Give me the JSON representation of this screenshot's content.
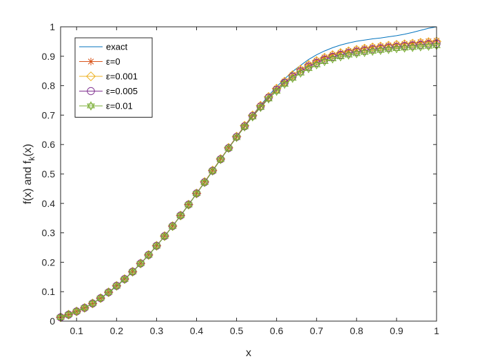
{
  "chart_data": {
    "type": "line",
    "title": "",
    "xlabel": "x",
    "ylabel": "f(x) and f_k(x)",
    "ylabel_parts": {
      "pre": "f(x) and f",
      "sub": "k",
      "post": "(x)"
    },
    "xlim": [
      0.06,
      1.0
    ],
    "ylim": [
      0,
      1
    ],
    "x_ticks": [
      0.1,
      0.2,
      0.3,
      0.4,
      0.5,
      0.6,
      0.7,
      0.8,
      0.9,
      1
    ],
    "x_tick_labels": [
      "0.1",
      "0.2",
      "0.3",
      "0.4",
      "0.5",
      "0.6",
      "0.7",
      "0.8",
      "0.9",
      "1"
    ],
    "y_ticks": [
      0,
      0.1,
      0.2,
      0.3,
      0.4,
      0.5,
      0.6,
      0.7,
      0.8,
      0.9,
      1
    ],
    "y_tick_labels": [
      "0",
      "0.1",
      "0.2",
      "0.3",
      "0.4",
      "0.5",
      "0.6",
      "0.7",
      "0.8",
      "0.9",
      "1"
    ],
    "grid": false,
    "legend_position": "top-left",
    "x": [
      0.06,
      0.08,
      0.1,
      0.12,
      0.14,
      0.16,
      0.18,
      0.2,
      0.22,
      0.24,
      0.26,
      0.28,
      0.3,
      0.32,
      0.34,
      0.36,
      0.38,
      0.4,
      0.42,
      0.44,
      0.46,
      0.48,
      0.5,
      0.52,
      0.54,
      0.56,
      0.58,
      0.6,
      0.62,
      0.64,
      0.66,
      0.68,
      0.7,
      0.72,
      0.74,
      0.76,
      0.78,
      0.8,
      0.82,
      0.84,
      0.86,
      0.88,
      0.9,
      0.92,
      0.94,
      0.96,
      0.98,
      1.0
    ],
    "series": [
      {
        "name": "exact",
        "color": "#0072BD",
        "marker": "none",
        "values": [
          0.013,
          0.022,
          0.033,
          0.045,
          0.06,
          0.077,
          0.097,
          0.118,
          0.142,
          0.167,
          0.195,
          0.224,
          0.255,
          0.288,
          0.322,
          0.358,
          0.395,
          0.433,
          0.471,
          0.51,
          0.549,
          0.588,
          0.627,
          0.664,
          0.7,
          0.734,
          0.766,
          0.796,
          0.823,
          0.848,
          0.869,
          0.889,
          0.905,
          0.918,
          0.929,
          0.938,
          0.945,
          0.951,
          0.955,
          0.959,
          0.962,
          0.966,
          0.97,
          0.975,
          0.981,
          0.988,
          0.995,
          1.0
        ]
      },
      {
        "name": "ε=0",
        "color": "#D95319",
        "marker": "asterisk",
        "values": [
          0.013,
          0.022,
          0.033,
          0.045,
          0.06,
          0.078,
          0.098,
          0.12,
          0.143,
          0.168,
          0.196,
          0.225,
          0.256,
          0.289,
          0.323,
          0.359,
          0.396,
          0.434,
          0.473,
          0.512,
          0.551,
          0.589,
          0.627,
          0.664,
          0.699,
          0.732,
          0.762,
          0.79,
          0.814,
          0.836,
          0.855,
          0.871,
          0.885,
          0.896,
          0.905,
          0.912,
          0.918,
          0.923,
          0.927,
          0.931,
          0.934,
          0.937,
          0.94,
          0.942,
          0.945,
          0.948,
          0.951,
          0.953
        ]
      },
      {
        "name": "ε=0.001",
        "color": "#EDB120",
        "marker": "diamond",
        "values": [
          0.013,
          0.022,
          0.033,
          0.045,
          0.06,
          0.078,
          0.098,
          0.12,
          0.143,
          0.168,
          0.196,
          0.225,
          0.256,
          0.289,
          0.323,
          0.359,
          0.396,
          0.434,
          0.473,
          0.512,
          0.551,
          0.589,
          0.627,
          0.664,
          0.699,
          0.732,
          0.762,
          0.79,
          0.814,
          0.836,
          0.855,
          0.871,
          0.884,
          0.895,
          0.904,
          0.911,
          0.917,
          0.922,
          0.926,
          0.93,
          0.933,
          0.936,
          0.939,
          0.941,
          0.943,
          0.946,
          0.948,
          0.95
        ]
      },
      {
        "name": "ε=0.005",
        "color": "#7E2F8E",
        "marker": "circle",
        "values": [
          0.013,
          0.022,
          0.033,
          0.045,
          0.06,
          0.078,
          0.098,
          0.12,
          0.143,
          0.168,
          0.196,
          0.225,
          0.256,
          0.289,
          0.323,
          0.359,
          0.396,
          0.434,
          0.472,
          0.511,
          0.55,
          0.588,
          0.626,
          0.662,
          0.697,
          0.729,
          0.759,
          0.786,
          0.81,
          0.831,
          0.849,
          0.865,
          0.878,
          0.889,
          0.898,
          0.905,
          0.911,
          0.916,
          0.92,
          0.924,
          0.927,
          0.93,
          0.932,
          0.935,
          0.937,
          0.939,
          0.941,
          0.943
        ]
      },
      {
        "name": "ε=0.01",
        "color": "#77AC30",
        "marker": "hexagram",
        "values": [
          0.013,
          0.022,
          0.033,
          0.045,
          0.06,
          0.078,
          0.098,
          0.119,
          0.142,
          0.167,
          0.195,
          0.224,
          0.255,
          0.288,
          0.322,
          0.358,
          0.395,
          0.433,
          0.471,
          0.51,
          0.549,
          0.587,
          0.624,
          0.66,
          0.694,
          0.726,
          0.755,
          0.781,
          0.805,
          0.825,
          0.843,
          0.858,
          0.871,
          0.882,
          0.891,
          0.898,
          0.904,
          0.909,
          0.913,
          0.917,
          0.92,
          0.923,
          0.926,
          0.928,
          0.93,
          0.932,
          0.934,
          0.936
        ]
      }
    ]
  }
}
